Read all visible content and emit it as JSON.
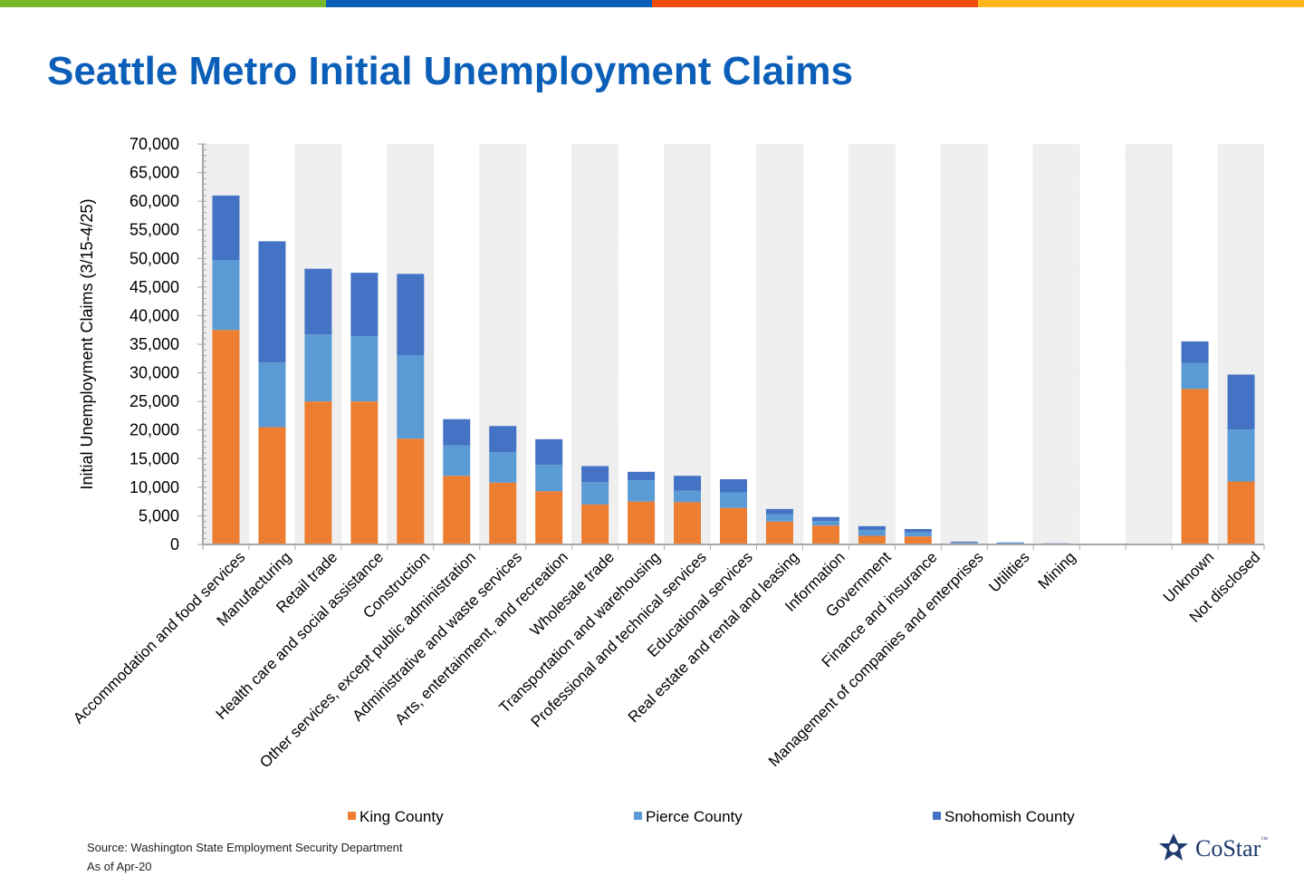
{
  "top_bar_colors": [
    "#76b82a",
    "#0b5fb8",
    "#f04e0f",
    "#ffb81c"
  ],
  "title": "Seattle Metro Initial Unemployment Claims",
  "source": "Source: Washington State Employment Security Department",
  "as_of": "As of Apr-20",
  "logo": {
    "text": "CoStar",
    "tm": "™",
    "icon": "costar-star-icon"
  },
  "chart_data": {
    "type": "bar",
    "stacked": true,
    "ylabel": "Initial Unemployment Claims (3/15-4/25)",
    "xlabel": "",
    "ylim": [
      0,
      70000
    ],
    "ytick_step": 5000,
    "ytick_labels": [
      "0",
      "5,000",
      "10,000",
      "15,000",
      "20,000",
      "25,000",
      "30,000",
      "35,000",
      "40,000",
      "45,000",
      "50,000",
      "55,000",
      "60,000",
      "65,000",
      "70,000"
    ],
    "grid": false,
    "alternating_column_bands": true,
    "legend_position": "bottom",
    "categories": [
      "Accommodation and food services",
      "Manufacturing",
      "Retail trade",
      "Health care and social assistance",
      "Construction",
      "Other services, except public administration",
      "Administrative and waste services",
      "Arts, entertainment, and recreation",
      "Wholesale trade",
      "Transportation and warehousing",
      "Professional and technical services",
      "Educational services",
      "Real estate and rental and leasing",
      "Information",
      "Government",
      "Finance and insurance",
      "Management of companies and enterprises",
      "Utilities",
      "Mining",
      "",
      "",
      "Unknown",
      "Not disclosed"
    ],
    "series": [
      {
        "name": "King County",
        "color": "#ed7d31",
        "values": [
          37500,
          20500,
          25000,
          25000,
          18500,
          12000,
          10800,
          9300,
          7000,
          7500,
          7400,
          6400,
          4000,
          3300,
          1500,
          1400,
          200,
          150,
          100,
          0,
          0,
          27200,
          11000
        ]
      },
      {
        "name": "Pierce County",
        "color": "#5b9bd5",
        "values": [
          12200,
          11300,
          11700,
          11400,
          14600,
          5300,
          5300,
          4600,
          3900,
          3700,
          2000,
          2700,
          1300,
          800,
          1000,
          700,
          150,
          100,
          50,
          0,
          0,
          4500,
          9100
        ]
      },
      {
        "name": "Snohomish County",
        "color": "#4472c4",
        "values": [
          11300,
          21200,
          11500,
          11100,
          14200,
          4600,
          4600,
          4500,
          2800,
          1500,
          2600,
          2300,
          900,
          700,
          700,
          600,
          150,
          100,
          50,
          0,
          0,
          3800,
          9600
        ]
      }
    ]
  }
}
